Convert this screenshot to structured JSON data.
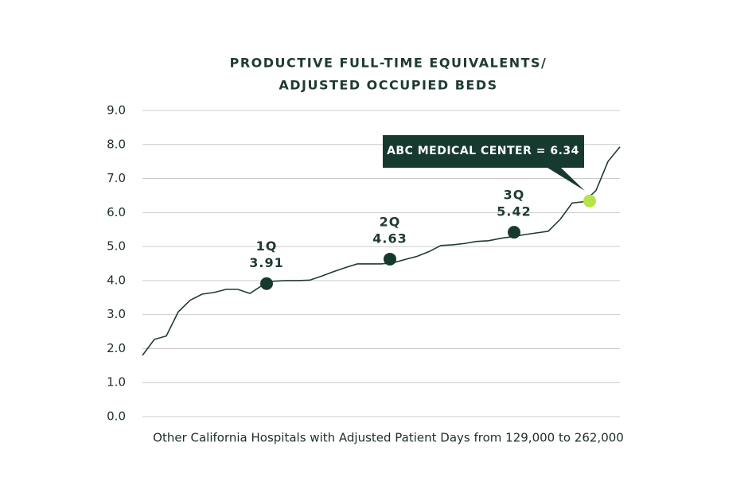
{
  "chart_data": {
    "type": "line",
    "title_lines": [
      "PRODUCTIVE FULL-TIME EQUIVALENTS/",
      "ADJUSTED OCCUPIED BEDS"
    ],
    "x_label": "Other California Hospitals with Adjusted Patient Days from 129,000 to 262,000",
    "series": [
      {
        "color": "#1f3b33",
        "values": [
          1.8,
          2.27,
          2.37,
          3.08,
          3.42,
          3.6,
          3.65,
          3.74,
          3.74,
          3.62,
          3.85,
          3.98,
          4.0,
          4.0,
          4.01,
          4.13,
          4.26,
          4.38,
          4.49,
          4.49,
          4.49,
          4.52,
          4.62,
          4.71,
          4.85,
          5.03,
          5.05,
          5.09,
          5.15,
          5.17,
          5.24,
          5.29,
          5.35,
          5.4,
          5.45,
          5.8,
          6.28,
          6.32,
          6.65,
          7.5,
          7.93
        ]
      }
    ],
    "quartiles": [
      {
        "label": "1Q",
        "value": 3.91
      },
      {
        "label": "2Q",
        "value": 4.63
      },
      {
        "label": "3Q",
        "value": 5.42
      }
    ],
    "quartile_color": "#173a30",
    "highlight": {
      "text": "ABC MEDICAL CENTER = 6.34",
      "value": 6.34,
      "color": "#b5e34a",
      "box_color": "#173a30"
    },
    "ylim": [
      0,
      9
    ],
    "yticks": [
      {
        "value": 0,
        "label": "0.0"
      },
      {
        "value": 1,
        "label": "1.0"
      },
      {
        "value": 2,
        "label": "2.0"
      },
      {
        "value": 3,
        "label": "3.0"
      },
      {
        "value": 4,
        "label": "4.0"
      },
      {
        "value": 5,
        "label": "5.0"
      },
      {
        "value": 6,
        "label": "6.0"
      },
      {
        "value": 7,
        "label": "7.0"
      },
      {
        "value": 8,
        "label": "8.0"
      },
      {
        "value": 9,
        "label": "9.0"
      }
    ],
    "grid": true
  }
}
